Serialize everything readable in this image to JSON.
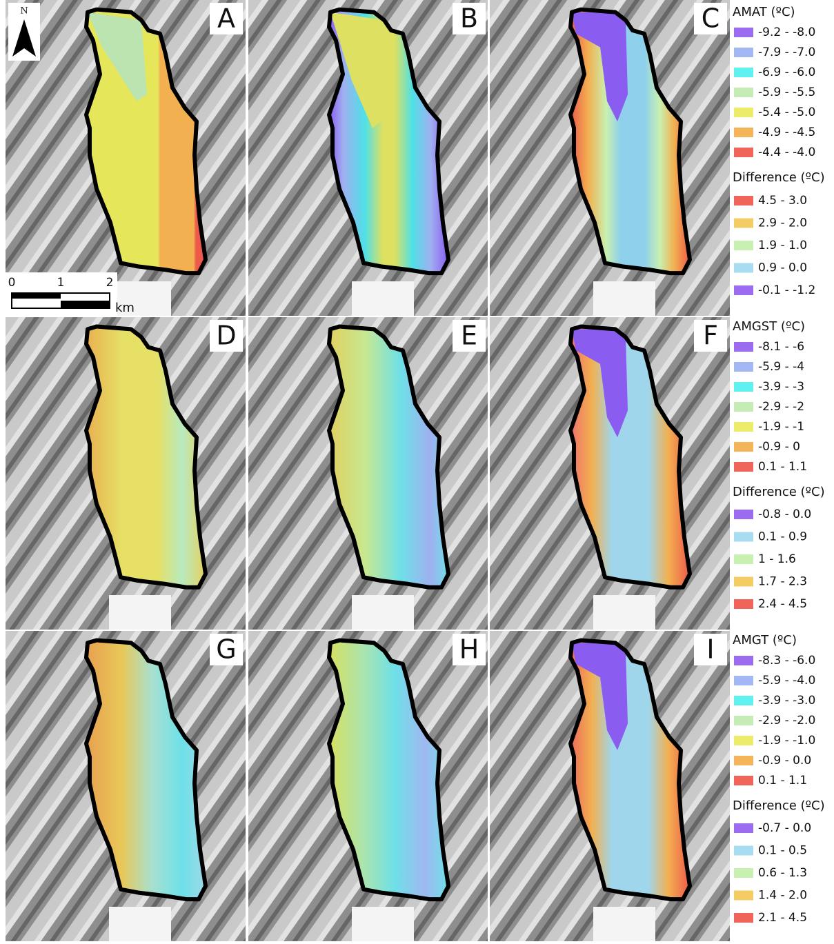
{
  "north_arrow": "N",
  "scale_bar": {
    "labels": [
      "0",
      "1",
      "2"
    ],
    "unit": "km"
  },
  "panels": [
    {
      "label": "A"
    },
    {
      "label": "B"
    },
    {
      "label": "C"
    },
    {
      "label": "D"
    },
    {
      "label": "E"
    },
    {
      "label": "F"
    },
    {
      "label": "G"
    },
    {
      "label": "H"
    },
    {
      "label": "I"
    }
  ],
  "legends": [
    {
      "title": "AMAT (ºC)",
      "items": [
        {
          "label": "-9.2 - -8.0",
          "color": "#9b6cf0"
        },
        {
          "label": "-7.9 - -7.0",
          "color": "#a3b7f5"
        },
        {
          "label": "-6.9 - -6.0",
          "color": "#5ff0f0"
        },
        {
          "label": "-5.9 - -5.5",
          "color": "#c4ecb4"
        },
        {
          "label": "-5.4 - -5.0",
          "color": "#ecec6a"
        },
        {
          "label": "-4.9 - -4.5",
          "color": "#f4b45a"
        },
        {
          "label": "-4.4 - -4.0",
          "color": "#f0645a"
        }
      ]
    },
    {
      "title": "Difference (ºC)",
      "items": [
        {
          "label": "4.5 - 3.0",
          "color": "#f0645a"
        },
        {
          "label": "2.9 - 2.0",
          "color": "#f4cc64"
        },
        {
          "label": "1.9 - 1.0",
          "color": "#c8f0b0"
        },
        {
          "label": "0.9 - 0.0",
          "color": "#a8dcf0"
        },
        {
          "label": "-0.1 - -1.2",
          "color": "#9b6cf0"
        }
      ]
    },
    {
      "title": "AMGST (ºC)",
      "items": [
        {
          "label": "-8.1 - -6",
          "color": "#9b6cf0"
        },
        {
          "label": "-5.9 - -4",
          "color": "#a3b7f5"
        },
        {
          "label": "-3.9 - -3",
          "color": "#5ff0f0"
        },
        {
          "label": "-2.9 - -2",
          "color": "#c4ecb4"
        },
        {
          "label": "-1.9 - -1",
          "color": "#ecec6a"
        },
        {
          "label": "-0.9 - 0",
          "color": "#f4b45a"
        },
        {
          "label": "0.1 - 1.1",
          "color": "#f0645a"
        }
      ]
    },
    {
      "title": "Difference (ºC)",
      "items": [
        {
          "label": "-0.8 - 0.0",
          "color": "#9b6cf0"
        },
        {
          "label": "0.1 - 0.9",
          "color": "#a8dcf0"
        },
        {
          "label": "1 - 1.6",
          "color": "#c8f0b0"
        },
        {
          "label": "1.7 - 2.3",
          "color": "#f4cc64"
        },
        {
          "label": "2.4 - 4.5",
          "color": "#f0645a"
        }
      ]
    },
    {
      "title": "AMGT (ºC)",
      "items": [
        {
          "label": "-8.3 - -6.0",
          "color": "#9b6cf0"
        },
        {
          "label": "-5.9 - -4.0",
          "color": "#a3b7f5"
        },
        {
          "label": "-3.9 - -3.0",
          "color": "#5ff0f0"
        },
        {
          "label": "-2.9 - -2.0",
          "color": "#c4ecb4"
        },
        {
          "label": "-1.9 - -1.0",
          "color": "#ecec6a"
        },
        {
          "label": "-0.9 - 0.0",
          "color": "#f4b45a"
        },
        {
          "label": "0.1 - 1.1",
          "color": "#f0645a"
        }
      ]
    },
    {
      "title": "Difference (ºC)",
      "items": [
        {
          "label": "-0.7 - 0.0",
          "color": "#9b6cf0"
        },
        {
          "label": "0.1 - 0.5",
          "color": "#a8dcf0"
        },
        {
          "label": "0.6 - 1.3",
          "color": "#c8f0b0"
        },
        {
          "label": "1.4 - 2.0",
          "color": "#f4cc64"
        },
        {
          "label": "2.1 - 4.5",
          "color": "#f0645a"
        }
      ]
    }
  ]
}
